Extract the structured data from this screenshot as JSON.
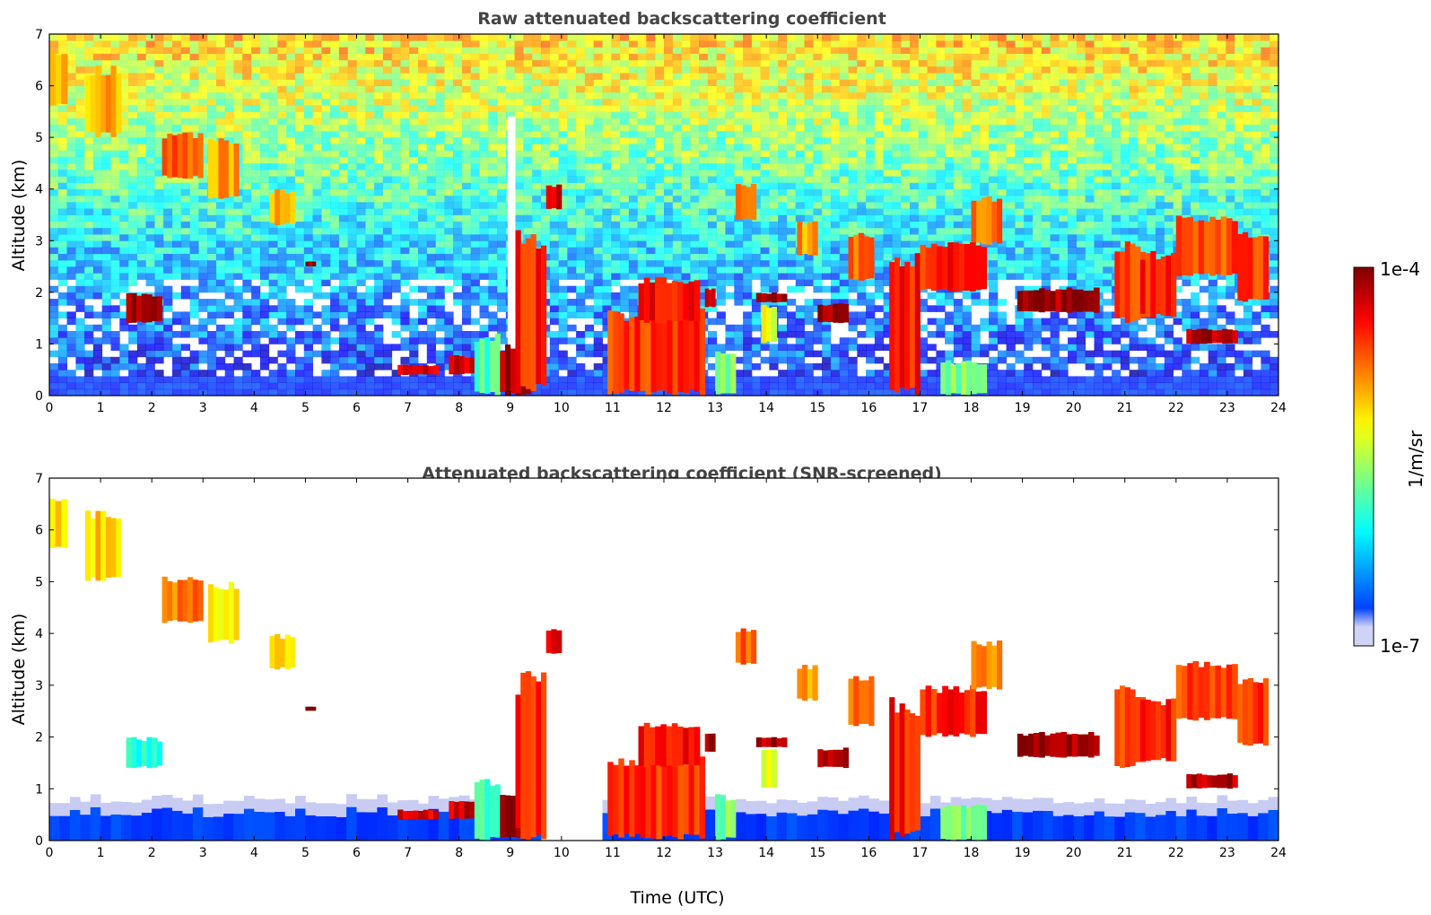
{
  "chart_data": [
    {
      "type": "heatmap",
      "title": "Raw attenuated backscattering coefficient",
      "xlabel": "",
      "ylabel": "Altitude (km)",
      "xlim": [
        0,
        24
      ],
      "ylim": [
        0,
        7
      ],
      "xticks": [
        "0",
        "1",
        "2",
        "3",
        "4",
        "5",
        "6",
        "7",
        "8",
        "9",
        "10",
        "11",
        "12",
        "13",
        "14",
        "15",
        "16",
        "17",
        "18",
        "19",
        "20",
        "21",
        "22",
        "23",
        "24"
      ],
      "yticks": [
        "0",
        "1",
        "2",
        "3",
        "4",
        "5",
        "6",
        "7"
      ],
      "noise": "dense",
      "features": [
        {
          "t0": 0.0,
          "t1": 0.35,
          "z0": 5.6,
          "z1": 6.7,
          "level": 0.72
        },
        {
          "t0": 0.7,
          "t1": 1.4,
          "z0": 5.0,
          "z1": 6.4,
          "level": 0.7
        },
        {
          "t0": 2.2,
          "t1": 3.0,
          "z0": 4.2,
          "z1": 5.1,
          "level": 0.8
        },
        {
          "t0": 3.1,
          "t1": 3.7,
          "z0": 3.8,
          "z1": 5.0,
          "level": 0.72
        },
        {
          "t0": 4.3,
          "t1": 4.8,
          "z0": 3.3,
          "z1": 4.0,
          "level": 0.7
        },
        {
          "t0": 1.5,
          "t1": 2.2,
          "z0": 1.4,
          "z1": 2.0,
          "level": 0.97
        },
        {
          "t0": 5.0,
          "t1": 5.2,
          "z0": 2.5,
          "z1": 2.6,
          "level": 0.97
        },
        {
          "t0": 6.8,
          "t1": 7.6,
          "z0": 0.4,
          "z1": 0.6,
          "level": 0.9
        },
        {
          "t0": 7.8,
          "t1": 8.4,
          "z0": 0.4,
          "z1": 0.8,
          "level": 0.92
        },
        {
          "t0": 8.3,
          "t1": 8.8,
          "z0": 0.0,
          "z1": 1.2,
          "level": 0.45
        },
        {
          "t0": 8.8,
          "t1": 9.4,
          "z0": 0.0,
          "z1": 1.0,
          "level": 0.97
        },
        {
          "t0": 9.1,
          "t1": 9.7,
          "z0": 0.0,
          "z1": 3.3,
          "level": 0.85
        },
        {
          "t0": 9.7,
          "t1": 10.0,
          "z0": 3.6,
          "z1": 4.1,
          "level": 0.9
        },
        {
          "t0": 10.9,
          "t1": 12.8,
          "z0": 0.0,
          "z1": 1.7,
          "level": 0.82
        },
        {
          "t0": 11.5,
          "t1": 12.7,
          "z0": 1.4,
          "z1": 2.3,
          "level": 0.88
        },
        {
          "t0": 12.8,
          "t1": 13.0,
          "z0": 1.7,
          "z1": 2.1,
          "level": 0.95
        },
        {
          "t0": 13.0,
          "t1": 13.4,
          "z0": 0.0,
          "z1": 0.9,
          "level": 0.5
        },
        {
          "t0": 13.4,
          "t1": 13.8,
          "z0": 3.4,
          "z1": 4.1,
          "level": 0.78
        },
        {
          "t0": 13.8,
          "t1": 14.4,
          "z0": 1.8,
          "z1": 2.0,
          "level": 0.96
        },
        {
          "t0": 13.9,
          "t1": 14.2,
          "z0": 1.0,
          "z1": 1.8,
          "level": 0.6
        },
        {
          "t0": 14.6,
          "t1": 15.0,
          "z0": 2.7,
          "z1": 3.4,
          "level": 0.72
        },
        {
          "t0": 15.0,
          "t1": 15.6,
          "z0": 1.4,
          "z1": 1.8,
          "level": 0.96
        },
        {
          "t0": 15.6,
          "t1": 16.1,
          "z0": 2.2,
          "z1": 3.2,
          "level": 0.78
        },
        {
          "t0": 16.4,
          "t1": 17.0,
          "z0": 0.0,
          "z1": 2.8,
          "level": 0.86
        },
        {
          "t0": 17.0,
          "t1": 18.3,
          "z0": 2.0,
          "z1": 3.0,
          "level": 0.85
        },
        {
          "t0": 17.4,
          "t1": 18.3,
          "z0": 0.0,
          "z1": 0.7,
          "level": 0.5
        },
        {
          "t0": 18.0,
          "t1": 18.6,
          "z0": 2.9,
          "z1": 3.9,
          "level": 0.76
        },
        {
          "t0": 18.9,
          "t1": 20.5,
          "z0": 1.6,
          "z1": 2.1,
          "level": 0.97
        },
        {
          "t0": 20.8,
          "t1": 21.4,
          "z0": 1.4,
          "z1": 3.0,
          "level": 0.8
        },
        {
          "t0": 21.3,
          "t1": 22.0,
          "z0": 1.5,
          "z1": 2.8,
          "level": 0.84
        },
        {
          "t0": 22.0,
          "t1": 23.2,
          "z0": 2.3,
          "z1": 3.5,
          "level": 0.8
        },
        {
          "t0": 23.2,
          "t1": 23.8,
          "z0": 1.8,
          "z1": 3.2,
          "level": 0.82
        },
        {
          "t0": 22.2,
          "t1": 23.2,
          "z0": 1.0,
          "z1": 1.3,
          "level": 0.95
        }
      ]
    },
    {
      "type": "heatmap",
      "title": "Attenuated backscattering coefficient (SNR-screened)",
      "xlabel": "Time (UTC)",
      "ylabel": "Altitude (km)",
      "xlim": [
        0,
        24
      ],
      "ylim": [
        0,
        7
      ],
      "xticks": [
        "0",
        "1",
        "2",
        "3",
        "4",
        "5",
        "6",
        "7",
        "8",
        "9",
        "10",
        "11",
        "12",
        "13",
        "14",
        "15",
        "16",
        "17",
        "18",
        "19",
        "20",
        "21",
        "22",
        "23",
        "24"
      ],
      "yticks": [
        "0",
        "1",
        "2",
        "3",
        "4",
        "5",
        "6",
        "7"
      ],
      "noise": "screened",
      "features": [
        {
          "t0": 0.0,
          "t1": 0.35,
          "z0": 5.6,
          "z1": 6.7,
          "level": 0.68
        },
        {
          "t0": 0.7,
          "t1": 1.4,
          "z0": 5.0,
          "z1": 6.4,
          "level": 0.66
        },
        {
          "t0": 2.2,
          "t1": 3.0,
          "z0": 4.2,
          "z1": 5.1,
          "level": 0.76
        },
        {
          "t0": 3.1,
          "t1": 3.7,
          "z0": 3.8,
          "z1": 5.0,
          "level": 0.66
        },
        {
          "t0": 4.3,
          "t1": 4.8,
          "z0": 3.3,
          "z1": 4.0,
          "level": 0.68
        },
        {
          "t0": 1.5,
          "t1": 2.2,
          "z0": 1.4,
          "z1": 2.0,
          "level": 0.4
        },
        {
          "t0": 5.0,
          "t1": 5.2,
          "z0": 2.5,
          "z1": 2.6,
          "level": 0.97
        },
        {
          "t0": 6.8,
          "t1": 7.6,
          "z0": 0.4,
          "z1": 0.6,
          "level": 0.9
        },
        {
          "t0": 7.8,
          "t1": 8.4,
          "z0": 0.4,
          "z1": 0.8,
          "level": 0.92
        },
        {
          "t0": 8.3,
          "t1": 8.8,
          "z0": 0.0,
          "z1": 1.2,
          "level": 0.45
        },
        {
          "t0": 8.8,
          "t1": 9.4,
          "z0": 0.0,
          "z1": 1.0,
          "level": 0.97
        },
        {
          "t0": 9.1,
          "t1": 9.7,
          "z0": 0.0,
          "z1": 3.3,
          "level": 0.85
        },
        {
          "t0": 9.7,
          "t1": 10.0,
          "z0": 3.6,
          "z1": 4.1,
          "level": 0.9
        },
        {
          "t0": 10.9,
          "t1": 12.8,
          "z0": 0.0,
          "z1": 1.7,
          "level": 0.82
        },
        {
          "t0": 11.5,
          "t1": 12.7,
          "z0": 1.4,
          "z1": 2.3,
          "level": 0.88
        },
        {
          "t0": 12.8,
          "t1": 13.0,
          "z0": 1.7,
          "z1": 2.1,
          "level": 0.95
        },
        {
          "t0": 13.0,
          "t1": 13.4,
          "z0": 0.0,
          "z1": 0.9,
          "level": 0.5
        },
        {
          "t0": 13.4,
          "t1": 13.8,
          "z0": 3.4,
          "z1": 4.1,
          "level": 0.78
        },
        {
          "t0": 13.8,
          "t1": 14.4,
          "z0": 1.8,
          "z1": 2.0,
          "level": 0.96
        },
        {
          "t0": 13.9,
          "t1": 14.2,
          "z0": 1.0,
          "z1": 1.8,
          "level": 0.6
        },
        {
          "t0": 14.6,
          "t1": 15.0,
          "z0": 2.7,
          "z1": 3.4,
          "level": 0.72
        },
        {
          "t0": 15.0,
          "t1": 15.6,
          "z0": 1.4,
          "z1": 1.8,
          "level": 0.96
        },
        {
          "t0": 15.6,
          "t1": 16.1,
          "z0": 2.2,
          "z1": 3.2,
          "level": 0.78
        },
        {
          "t0": 16.4,
          "t1": 17.0,
          "z0": 0.0,
          "z1": 2.8,
          "level": 0.86
        },
        {
          "t0": 17.0,
          "t1": 18.3,
          "z0": 2.0,
          "z1": 3.0,
          "level": 0.85
        },
        {
          "t0": 17.4,
          "t1": 18.3,
          "z0": 0.0,
          "z1": 0.7,
          "level": 0.5
        },
        {
          "t0": 18.0,
          "t1": 18.6,
          "z0": 2.9,
          "z1": 3.9,
          "level": 0.76
        },
        {
          "t0": 18.9,
          "t1": 20.5,
          "z0": 1.6,
          "z1": 2.1,
          "level": 0.97
        },
        {
          "t0": 20.8,
          "t1": 21.4,
          "z0": 1.4,
          "z1": 3.0,
          "level": 0.8
        },
        {
          "t0": 21.3,
          "t1": 22.0,
          "z0": 1.5,
          "z1": 2.8,
          "level": 0.84
        },
        {
          "t0": 22.0,
          "t1": 23.2,
          "z0": 2.3,
          "z1": 3.5,
          "level": 0.8
        },
        {
          "t0": 23.2,
          "t1": 23.8,
          "z0": 1.8,
          "z1": 3.2,
          "level": 0.82
        },
        {
          "t0": 22.2,
          "t1": 23.2,
          "z0": 1.0,
          "z1": 1.3,
          "level": 0.95
        }
      ]
    }
  ],
  "colorbar": {
    "label": "1/m/sr",
    "max_label": "1e-4",
    "min_label": "1e-7",
    "colormap": "jet",
    "scale": "log"
  }
}
